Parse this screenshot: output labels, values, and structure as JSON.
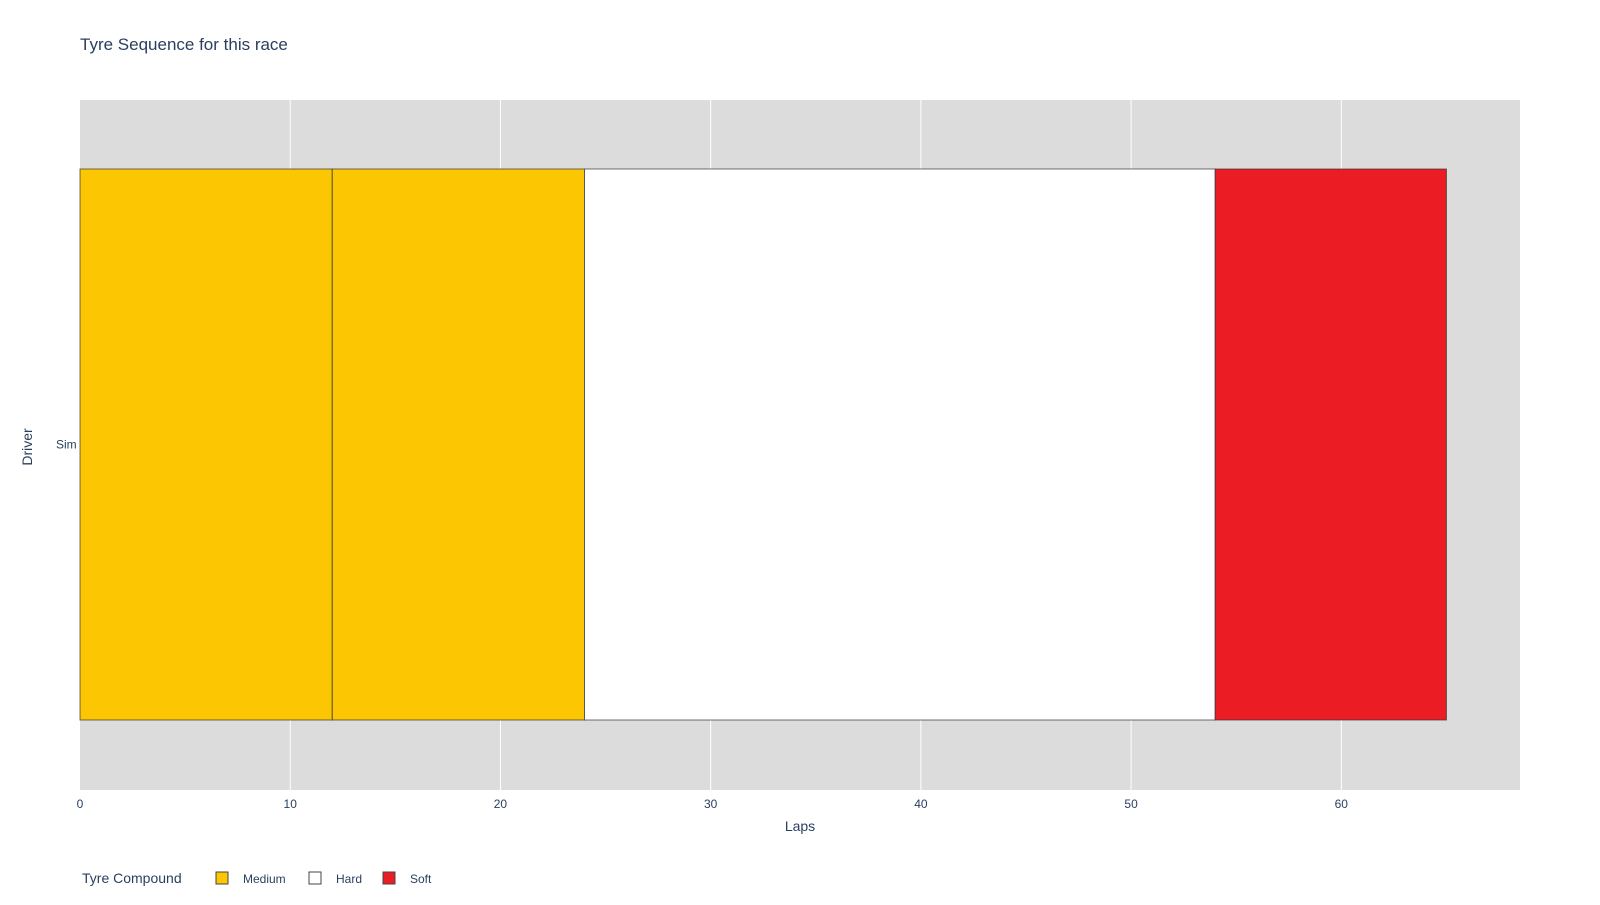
{
  "chart_data": {
    "type": "bar",
    "orientation": "horizontal",
    "barmode": "stack",
    "title": "Tyre Sequence for this race",
    "xlabel": "Laps",
    "ylabel": "Driver",
    "xlim": [
      0,
      68.5
    ],
    "xticks": [
      0,
      10,
      20,
      30,
      40,
      50,
      60
    ],
    "categories": [
      "Sim"
    ],
    "grid": true,
    "plot_background": "#dcdcdc",
    "series": [
      {
        "name": "Medium",
        "values": [
          12
        ],
        "color": "#fcc603"
      },
      {
        "name": "Medium",
        "values": [
          12
        ],
        "color": "#fcc603"
      },
      {
        "name": "Hard",
        "values": [
          30
        ],
        "color": "#ffffff"
      },
      {
        "name": "Soft",
        "values": [
          11
        ],
        "color": "#ec1c24"
      }
    ],
    "legend": {
      "title": "Tyre Compound",
      "placement": "bottom-left",
      "orientation": "horizontal",
      "items": [
        {
          "label": "Medium",
          "color": "#fcc603"
        },
        {
          "label": "Hard",
          "color": "#ffffff"
        },
        {
          "label": "Soft",
          "color": "#ec1c24"
        }
      ]
    }
  }
}
